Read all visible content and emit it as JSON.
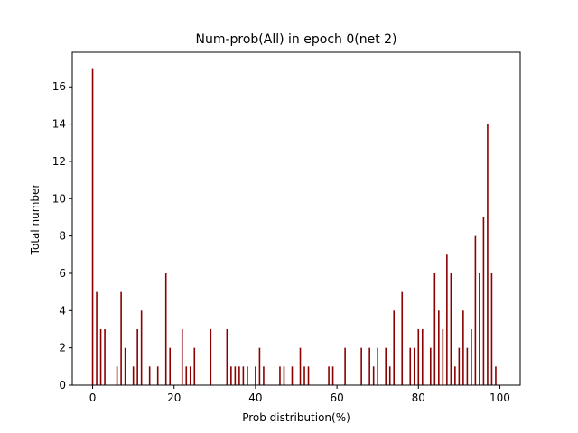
{
  "chart_data": {
    "type": "bar",
    "title": "Num-prob(All) in epoch 0(net 2)",
    "xlabel": "Prob distribution(%)",
    "ylabel": "Total number",
    "xlim": [
      -5,
      105
    ],
    "ylim": [
      0,
      17.85
    ],
    "xticks": [
      0,
      20,
      40,
      60,
      80,
      100
    ],
    "yticks": [
      0,
      2,
      4,
      6,
      8,
      10,
      12,
      14,
      16
    ],
    "bar_color": "#8b0000",
    "grid": false,
    "legend": "none",
    "x": [
      0,
      1,
      2,
      3,
      6,
      7,
      8,
      10,
      11,
      12,
      14,
      16,
      18,
      19,
      22,
      23,
      24,
      25,
      29,
      33,
      34,
      35,
      36,
      37,
      38,
      40,
      41,
      42,
      46,
      47,
      49,
      51,
      52,
      53,
      58,
      59,
      62,
      66,
      68,
      69,
      70,
      72,
      73,
      74,
      76,
      78,
      79,
      80,
      81,
      83,
      84,
      85,
      86,
      87,
      88,
      89,
      90,
      91,
      92,
      93,
      94,
      95,
      96,
      97,
      98,
      99
    ],
    "values": [
      17,
      5,
      3,
      3,
      1,
      5,
      2,
      1,
      3,
      4,
      1,
      1,
      6,
      2,
      3,
      1,
      1,
      2,
      3,
      3,
      1,
      1,
      1,
      1,
      1,
      1,
      2,
      1,
      1,
      1,
      1,
      2,
      1,
      1,
      1,
      1,
      2,
      2,
      2,
      1,
      2,
      2,
      1,
      4,
      5,
      2,
      2,
      3,
      3,
      2,
      6,
      4,
      3,
      7,
      6,
      1,
      2,
      4,
      2,
      3,
      8,
      6,
      9,
      14,
      6,
      1
    ]
  }
}
